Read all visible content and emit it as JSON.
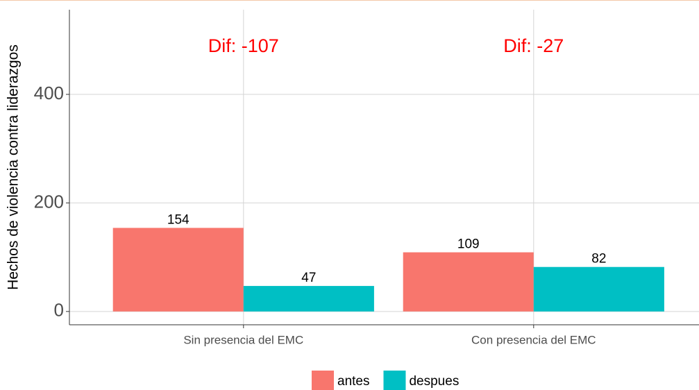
{
  "chart_data": {
    "type": "bar",
    "y_label": "Hechos de violencia contra liderazgos",
    "categories": [
      "Sin presencia del EMC",
      "Con presencia del EMC"
    ],
    "series": [
      {
        "name": "antes",
        "color": "#f8766d",
        "values": [
          154,
          109
        ]
      },
      {
        "name": "despues",
        "color": "#00bfc4",
        "values": [
          47,
          82
        ]
      }
    ],
    "annotations": [
      "Dif: -107",
      "Dif: -27"
    ],
    "ylim": [
      -24.5,
      556
    ],
    "yticks": [
      0,
      200,
      400
    ],
    "grid": true,
    "legend": "bottom"
  }
}
